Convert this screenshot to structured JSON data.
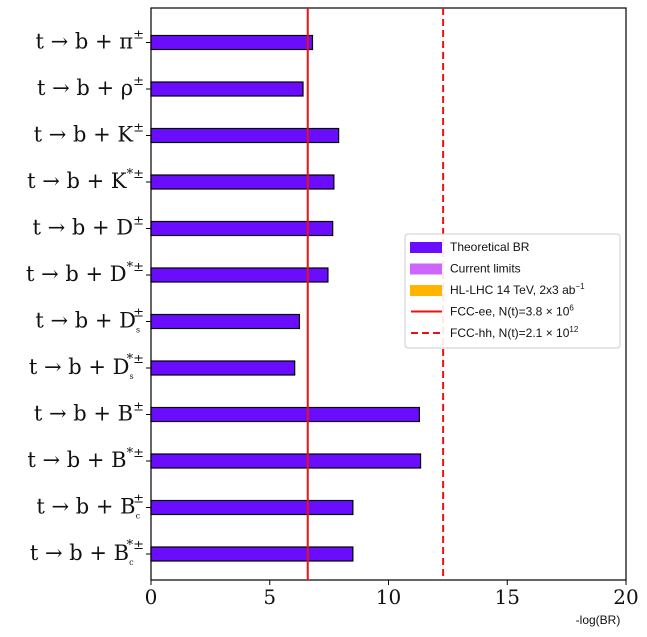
{
  "chart_data": {
    "type": "bar",
    "orientation": "horizontal",
    "xlabel": "-log(BR)",
    "xlim": [
      0,
      20
    ],
    "xticks": [
      "0",
      "5",
      "10",
      "15",
      "20"
    ],
    "categories": [
      {
        "base": "t → b + π",
        "sub": "",
        "sup": "±"
      },
      {
        "base": "t → b + ρ",
        "sub": "",
        "sup": "±"
      },
      {
        "base": "t → b + K",
        "sub": "",
        "sup": "±"
      },
      {
        "base": "t → b + K",
        "sub": "",
        "sup": "*±"
      },
      {
        "base": "t → b + D",
        "sub": "",
        "sup": "±"
      },
      {
        "base": "t → b + D",
        "sub": "",
        "sup": "*±"
      },
      {
        "base": "t → b + D",
        "sub": "s",
        "sup": "±"
      },
      {
        "base": "t → b + D",
        "sub": "s",
        "sup": "*±"
      },
      {
        "base": "t → b + B",
        "sub": "",
        "sup": "±"
      },
      {
        "base": "t → b + B",
        "sub": "",
        "sup": "*±"
      },
      {
        "base": "t → b + B",
        "sub": "c",
        "sup": "±"
      },
      {
        "base": "t → b + B",
        "sub": "c",
        "sup": "*±"
      }
    ],
    "series": [
      {
        "name": "Theoretical BR",
        "color": "#6a0dff",
        "values": [
          6.8,
          6.4,
          7.9,
          7.7,
          7.65,
          7.45,
          6.25,
          6.05,
          11.3,
          11.35,
          8.5,
          8.5
        ]
      }
    ],
    "reference_lines": [
      {
        "name": "FCC-ee",
        "value": 6.6,
        "color": "#ee1111",
        "style": "solid"
      },
      {
        "name": "FCC-hh",
        "value": 12.3,
        "color": "#ee1111",
        "style": "dashed"
      }
    ],
    "legend": {
      "placement": "center-right",
      "entries": [
        {
          "label": "Theoretical BR",
          "color": "#6a0dff",
          "kind": "patch"
        },
        {
          "label": "Current limits",
          "color": "#cc66ff",
          "kind": "patch"
        },
        {
          "label": "HL-LHC 14 TeV, 2x3 ab",
          "sup": "−1",
          "color": "#ffb400",
          "kind": "patch"
        },
        {
          "label": "FCC-ee, N(t)=3.8 × 10",
          "sup": "6",
          "color": "#ee1111",
          "kind": "solid"
        },
        {
          "label": "FCC-hh, N(t)=2.1 × 10",
          "sup": "12",
          "color": "#ee1111",
          "kind": "dashed"
        }
      ]
    }
  }
}
